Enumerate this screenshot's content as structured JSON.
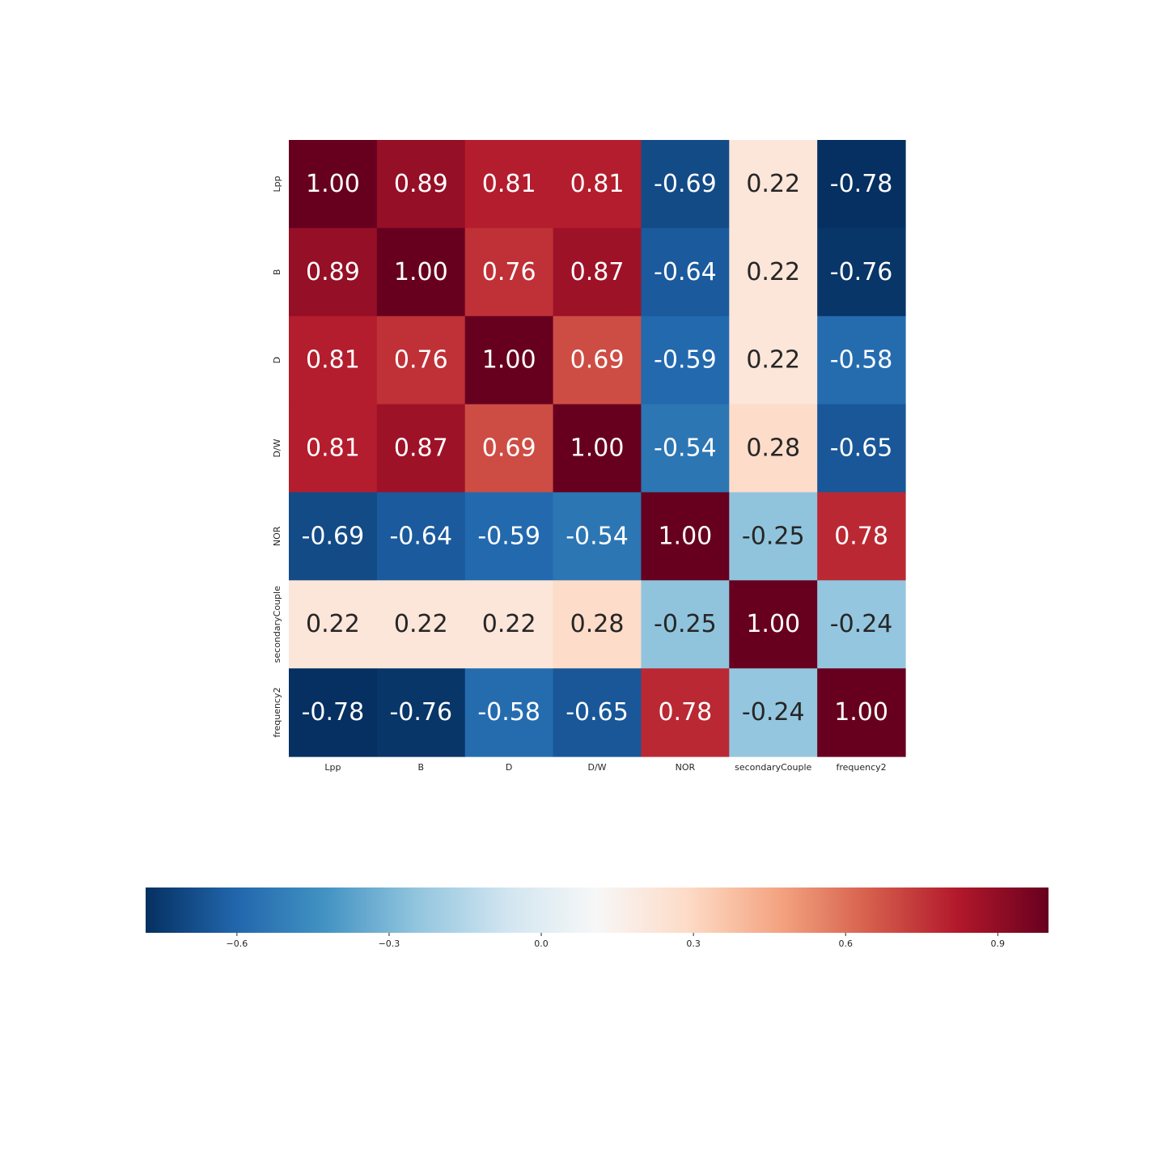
{
  "chart_data": {
    "type": "heatmap",
    "x_labels": [
      "Lpp",
      "B",
      "D",
      "D/W",
      "NOR",
      "secondaryCouple",
      "frequency2"
    ],
    "y_labels": [
      "Lpp",
      "B",
      "D",
      "D/W",
      "NOR",
      "secondaryCouple",
      "frequency2"
    ],
    "values": [
      [
        1.0,
        0.89,
        0.81,
        0.81,
        -0.69,
        0.22,
        -0.78
      ],
      [
        0.89,
        1.0,
        0.76,
        0.87,
        -0.64,
        0.22,
        -0.76
      ],
      [
        0.81,
        0.76,
        1.0,
        0.69,
        -0.59,
        0.22,
        -0.58
      ],
      [
        0.81,
        0.87,
        0.69,
        1.0,
        -0.54,
        0.28,
        -0.65
      ],
      [
        -0.69,
        -0.64,
        -0.59,
        -0.54,
        1.0,
        -0.25,
        0.78
      ],
      [
        0.22,
        0.22,
        0.22,
        0.28,
        -0.25,
        1.0,
        -0.24
      ],
      [
        -0.78,
        -0.76,
        -0.58,
        -0.65,
        0.78,
        -0.24,
        1.0
      ]
    ],
    "annotation_format": "0.00",
    "colormap": "RdBu_r",
    "colorbar": {
      "orientation": "horizontal",
      "range": [
        -0.78,
        1.0
      ],
      "ticks": [
        -0.6,
        -0.3,
        0.0,
        0.3,
        0.6,
        0.9
      ],
      "tick_labels": [
        "−0.6",
        "−0.3",
        "0.0",
        "0.3",
        "0.6",
        "0.9"
      ]
    },
    "title": "",
    "xlabel": "",
    "ylabel": ""
  }
}
